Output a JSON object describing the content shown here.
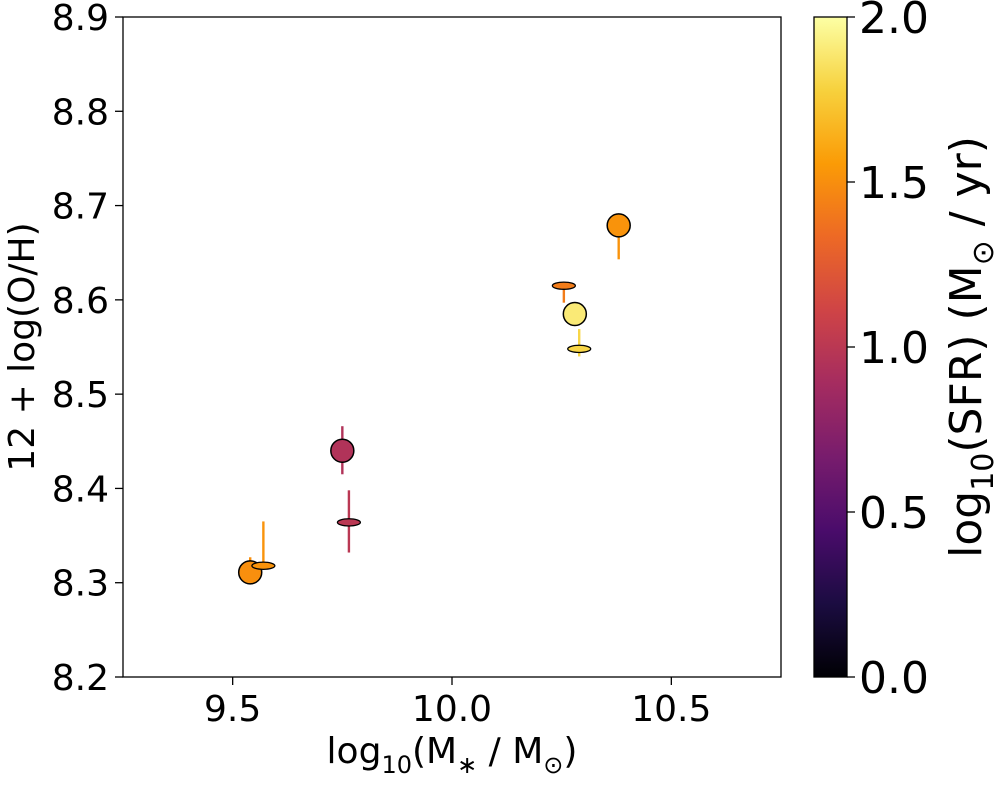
{
  "chart_data": {
    "type": "scatter",
    "title": "",
    "xlabel": {
      "prefix": "log",
      "sub": "10",
      "body": "(M",
      "sub2": "∗",
      "middle": " / M",
      "sub3": "⊙",
      "suffix": ")"
    },
    "ylabel": "12 + log(O/H)",
    "xlim": [
      9.25,
      10.75
    ],
    "ylim": [
      8.2,
      8.9
    ],
    "xticks": [
      9.5,
      10.0,
      10.5
    ],
    "xtick_labels": [
      "9.5",
      "10.0",
      "10.5"
    ],
    "yticks": [
      8.2,
      8.3,
      8.4,
      8.5,
      8.6,
      8.7,
      8.8,
      8.9
    ],
    "ytick_labels": [
      "8.2",
      "8.3",
      "8.4",
      "8.5",
      "8.6",
      "8.7",
      "8.8",
      "8.9"
    ],
    "colorbar": {
      "label": {
        "prefix": "log",
        "sub": "10",
        "body": "(SFR) (M",
        "sub2": "⊙",
        "suffix": " / yr)"
      },
      "range": [
        0.0,
        2.0
      ],
      "ticks": [
        0.0,
        0.5,
        1.0,
        1.5,
        2.0
      ],
      "tick_labels": [
        "0.0",
        "0.5",
        "1.0",
        "1.5",
        "2.0"
      ],
      "colormap": "inferno",
      "stops": [
        "#000004",
        "#1b0c41",
        "#4a0c6b",
        "#781c6d",
        "#a52c60",
        "#cf4446",
        "#ed6925",
        "#fb9b06",
        "#f7d13d",
        "#fcffa4"
      ]
    },
    "series": [
      {
        "name": "circles",
        "marker": "circle",
        "points": [
          {
            "x": 9.54,
            "y": 8.311,
            "c": 1.5,
            "yerr_low": 0.006,
            "yerr_high": 0.016
          },
          {
            "x": 9.75,
            "y": 8.44,
            "c": 0.95,
            "yerr_low": 0.025,
            "yerr_high": 0.026
          },
          {
            "x": 10.28,
            "y": 8.585,
            "c": 1.9,
            "yerr_low": 0.005,
            "yerr_high": 0.005
          },
          {
            "x": 10.38,
            "y": 8.679,
            "c": 1.52,
            "yerr_low": 0.036,
            "yerr_high": 0.002
          }
        ]
      },
      {
        "name": "ellipses",
        "marker": "ellipse",
        "points": [
          {
            "x": 9.57,
            "y": 8.318,
            "c": 1.52,
            "yerr_low": 0.001,
            "yerr_high": 0.047
          },
          {
            "x": 9.765,
            "y": 8.364,
            "c": 1.0,
            "yerr_low": 0.032,
            "yerr_high": 0.034
          },
          {
            "x": 10.255,
            "y": 8.615,
            "c": 1.42,
            "yerr_low": 0.018,
            "yerr_high": 0.001
          },
          {
            "x": 10.29,
            "y": 8.548,
            "c": 1.8,
            "yerr_low": 0.008,
            "yerr_high": 0.021
          }
        ]
      }
    ]
  }
}
